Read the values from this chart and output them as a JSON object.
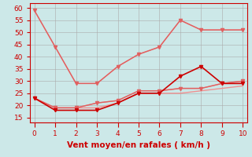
{
  "x": [
    0,
    1,
    2,
    3,
    4,
    5,
    6,
    7,
    8,
    9,
    10
  ],
  "series": [
    {
      "y": [
        59,
        44,
        29,
        29,
        36,
        41,
        44,
        55,
        51,
        51,
        51
      ],
      "color": "#f09090",
      "marker": null,
      "linewidth": 1.0,
      "linestyle": "-"
    },
    {
      "y": [
        23,
        19,
        19,
        21,
        22,
        26,
        26,
        27,
        27,
        29,
        30
      ],
      "color": "#f09090",
      "marker": null,
      "linewidth": 1.0,
      "linestyle": "-"
    },
    {
      "y": [
        23,
        19,
        19,
        19,
        21,
        25,
        25,
        25,
        26,
        27,
        28
      ],
      "color": "#f09090",
      "marker": null,
      "linewidth": 1.0,
      "linestyle": "-"
    },
    {
      "y": [
        59,
        44,
        29,
        29,
        36,
        41,
        44,
        55,
        51,
        51,
        51
      ],
      "color": "#e06060",
      "marker": "v",
      "markersize": 3,
      "linewidth": 1.0,
      "linestyle": "-"
    },
    {
      "y": [
        23,
        19,
        19,
        21,
        22,
        26,
        26,
        27,
        27,
        29,
        30
      ],
      "color": "#e06060",
      "marker": "v",
      "markersize": 3,
      "linewidth": 1.0,
      "linestyle": "-"
    },
    {
      "y": [
        23,
        18,
        18,
        18,
        21,
        25,
        25,
        32,
        36,
        29,
        29
      ],
      "color": "#cc0000",
      "marker": "v",
      "markersize": 3,
      "linewidth": 1.2,
      "linestyle": "-"
    }
  ],
  "xlim": [
    -0.2,
    10.2
  ],
  "ylim": [
    13,
    62
  ],
  "yticks": [
    15,
    20,
    25,
    30,
    35,
    40,
    45,
    50,
    55,
    60
  ],
  "xticks": [
    0,
    1,
    2,
    3,
    4,
    5,
    6,
    7,
    8,
    9,
    10
  ],
  "xlabel": "Vent moyen/en rafales ( km/h )",
  "background_color": "#cce8e8",
  "grid_color": "#aaaaaa",
  "tick_color": "#cc0000",
  "label_color": "#cc0000",
  "xlabel_color": "#cc0000",
  "xlabel_fontsize": 7.5,
  "tick_fontsize": 6.5
}
